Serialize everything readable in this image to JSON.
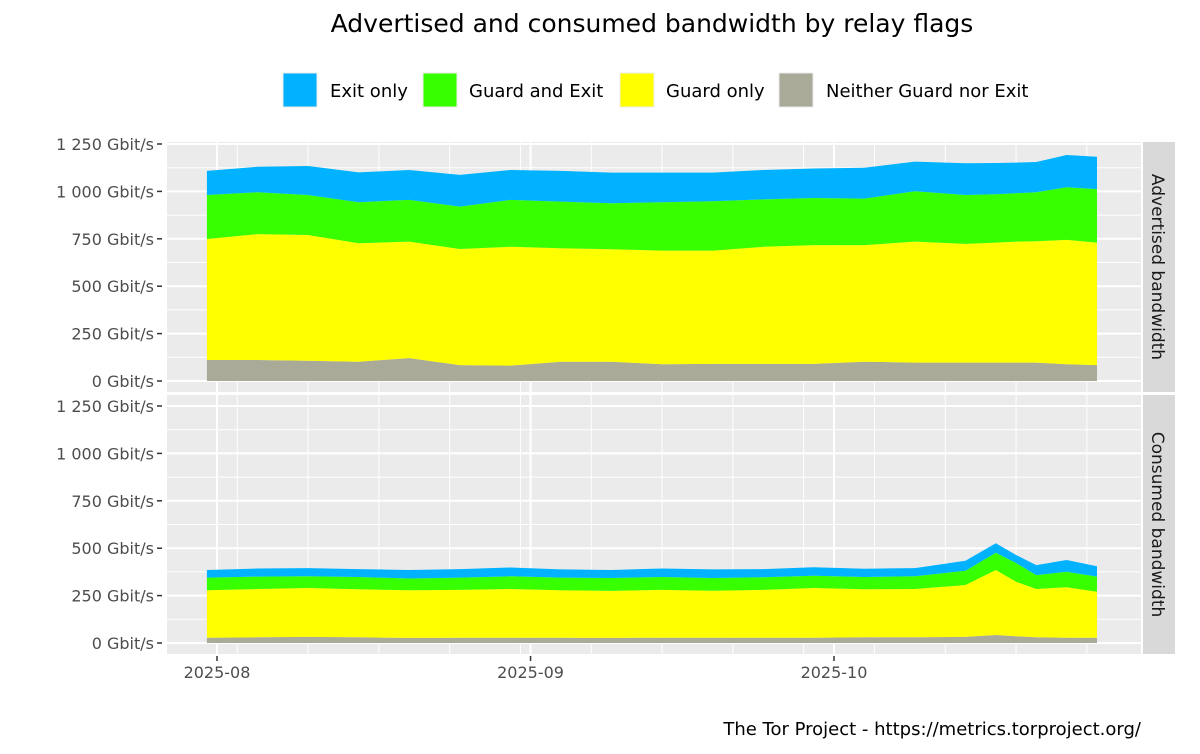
{
  "chart_data": {
    "type": "area",
    "stacked": true,
    "title": "Advertised and consumed bandwidth by relay flags",
    "caption": "The Tor Project - https://metrics.torproject.org/",
    "legend_position": "top",
    "grid": true,
    "x_ticks": [
      "2025-08",
      "2025-09",
      "2025-10"
    ],
    "x_tick_dates": [
      "2025-08-01",
      "2025-09-01",
      "2025-10-01"
    ],
    "y_ticks": [
      "0 Gbit/s",
      "250 Gbit/s",
      "500 Gbit/s",
      "750 Gbit/s",
      "1 000 Gbit/s",
      "1 250 Gbit/s"
    ],
    "y_tick_values": [
      0,
      250,
      500,
      750,
      1000,
      1250
    ],
    "ylim": [
      0,
      1250
    ],
    "x": [
      "2025-07-31",
      "2025-08-05",
      "2025-08-10",
      "2025-08-15",
      "2025-08-20",
      "2025-08-25",
      "2025-08-30",
      "2025-09-04",
      "2025-09-09",
      "2025-09-14",
      "2025-09-19",
      "2025-09-24",
      "2025-09-29",
      "2025-10-04",
      "2025-10-09",
      "2025-10-14",
      "2025-10-17",
      "2025-10-19",
      "2025-10-21",
      "2025-10-24",
      "2025-10-27"
    ],
    "legend": [
      {
        "name": "Exit only",
        "color": "#00B2FF"
      },
      {
        "name": "Guard and Exit",
        "color": "#38FF00"
      },
      {
        "name": "Guard only",
        "color": "#FFFF00"
      },
      {
        "name": "Neither Guard nor Exit",
        "color": "#AAAA99"
      }
    ],
    "panels": [
      {
        "name": "Advertised bandwidth",
        "series": [
          {
            "name": "Neither Guard nor Exit",
            "values": [
              111,
              111,
              107,
              102,
              121,
              84,
              81,
              102,
              102,
              88,
              90,
              90,
              90,
              102,
              97,
              97,
              97,
              97,
              97,
              88,
              84
            ]
          },
          {
            "name": "Guard only",
            "values": [
              638,
              664,
              663,
              625,
              614,
              612,
              627,
              598,
              593,
              600,
              598,
              618,
              627,
              615,
              638,
              626,
              633,
              638,
              640,
              656,
              646
            ]
          },
          {
            "name": "Guard and Exit",
            "values": [
              232,
              220,
              211,
              216,
              220,
              224,
              247,
              246,
              242,
              255,
              260,
              250,
              248,
              245,
              266,
              258,
              255,
              255,
              258,
              278,
              282
            ]
          },
          {
            "name": "Exit only",
            "values": [
              127,
              135,
              153,
              157,
              158,
              167,
              158,
              162,
              162,
              156,
              151,
              155,
              156,
              163,
              156,
              167,
              165,
              162,
              160,
              170,
              171
            ]
          }
        ]
      },
      {
        "name": "Consumed bandwidth",
        "series": [
          {
            "name": "Neither Guard nor Exit",
            "values": [
              28,
              30,
              32,
              30,
              27,
              28,
              28,
              28,
              27,
              28,
              28,
              28,
              28,
              30,
              30,
              32,
              42,
              36,
              30,
              28,
              28
            ]
          },
          {
            "name": "Guard only",
            "values": [
              250,
              255,
              258,
              253,
              251,
              252,
              257,
              250,
              248,
              252,
              248,
              252,
              262,
              253,
              255,
              274,
              343,
              287,
              255,
              266,
              242
            ]
          },
          {
            "name": "Guard and Exit",
            "values": [
              67,
              65,
              62,
              65,
              62,
              65,
              67,
              67,
              68,
              68,
              67,
              67,
              65,
              65,
              67,
              75,
              91,
              99,
              73,
              82,
              80
            ]
          },
          {
            "name": "Exit only",
            "values": [
              40,
              43,
              43,
              42,
              45,
              45,
              46,
              43,
              42,
              45,
              45,
              43,
              45,
              44,
              43,
              53,
              50,
              42,
              53,
              62,
              55
            ]
          }
        ]
      }
    ]
  }
}
